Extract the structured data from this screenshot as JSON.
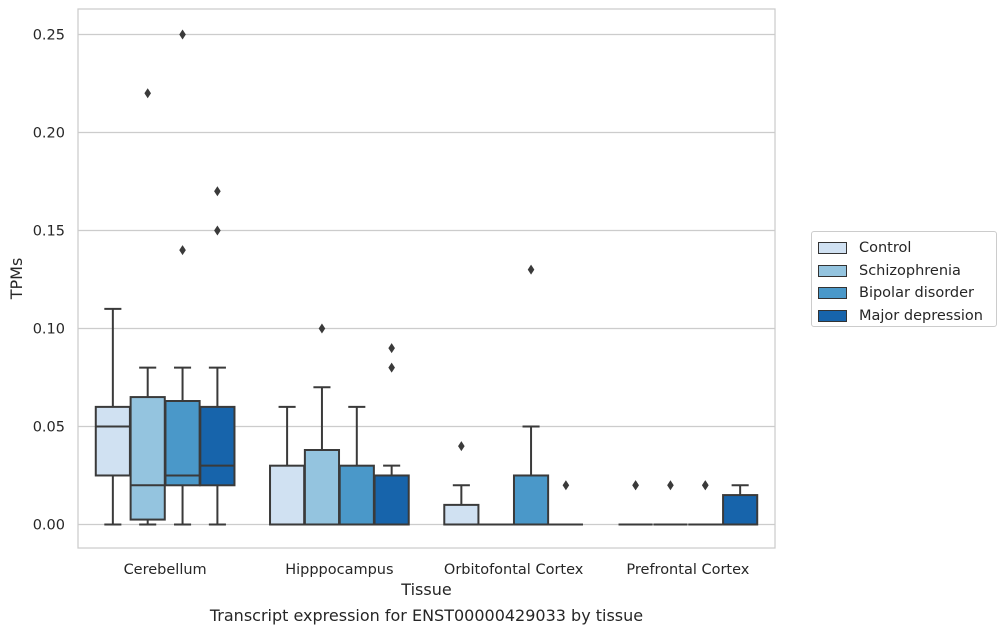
{
  "chart_data": {
    "type": "box",
    "title": "",
    "xlabel": "Tissue",
    "ylabel": "TPMs",
    "caption": "Transcript expression for ENST00000429033 by tissue",
    "ylim": [
      -0.012,
      0.263
    ],
    "yticks": [
      0.0,
      0.05,
      0.1,
      0.15,
      0.2,
      0.25
    ],
    "ytick_labels": [
      "0.00",
      "0.05",
      "0.10",
      "0.15",
      "0.20",
      "0.25"
    ],
    "grid": true,
    "legend_position": "right",
    "categories": [
      "Cerebellum",
      "Hipppocampus",
      "Orbitofontal Cortex",
      "Prefrontal Cortex"
    ],
    "series": [
      {
        "name": "Control",
        "color": "#d0e1f2",
        "boxes": [
          {
            "whisker_low": 0.0,
            "q1": 0.025,
            "median": 0.05,
            "q3": 0.06,
            "whisker_high": 0.11,
            "outliers": []
          },
          {
            "whisker_low": 0.0,
            "q1": 0.0,
            "median": 0.0,
            "q3": 0.03,
            "whisker_high": 0.06,
            "outliers": []
          },
          {
            "whisker_low": 0.0,
            "q1": 0.0,
            "median": 0.0,
            "q3": 0.01,
            "whisker_high": 0.02,
            "outliers": [
              0.04
            ]
          },
          {
            "whisker_low": 0.0,
            "q1": 0.0,
            "median": 0.0,
            "q3": 0.0,
            "whisker_high": 0.0,
            "outliers": [
              0.02,
              0.02
            ]
          }
        ]
      },
      {
        "name": "Schizophrenia",
        "color": "#94c4df",
        "boxes": [
          {
            "whisker_low": 0.0,
            "q1": 0.0025,
            "median": 0.02,
            "q3": 0.065,
            "whisker_high": 0.08,
            "outliers": [
              0.22
            ]
          },
          {
            "whisker_low": 0.0,
            "q1": 0.0,
            "median": 0.0,
            "q3": 0.038,
            "whisker_high": 0.07,
            "outliers": [
              0.1
            ]
          },
          {
            "whisker_low": 0.0,
            "q1": 0.0,
            "median": 0.0,
            "q3": 0.0,
            "whisker_high": 0.0,
            "outliers": []
          },
          {
            "whisker_low": 0.0,
            "q1": 0.0,
            "median": 0.0,
            "q3": 0.0,
            "whisker_high": 0.0,
            "outliers": [
              0.02
            ]
          }
        ]
      },
      {
        "name": "Bipolar disorder",
        "color": "#4a98c9",
        "boxes": [
          {
            "whisker_low": 0.0,
            "q1": 0.02,
            "median": 0.025,
            "q3": 0.063,
            "whisker_high": 0.08,
            "outliers": [
              0.14,
              0.25
            ]
          },
          {
            "whisker_low": 0.0,
            "q1": 0.0,
            "median": 0.0,
            "q3": 0.03,
            "whisker_high": 0.06,
            "outliers": []
          },
          {
            "whisker_low": 0.0,
            "q1": 0.0,
            "median": 0.0,
            "q3": 0.025,
            "whisker_high": 0.05,
            "outliers": [
              0.13
            ]
          },
          {
            "whisker_low": 0.0,
            "q1": 0.0,
            "median": 0.0,
            "q3": 0.0,
            "whisker_high": 0.0,
            "outliers": [
              0.02,
              0.02
            ]
          }
        ]
      },
      {
        "name": "Major depression",
        "color": "#1764ab",
        "boxes": [
          {
            "whisker_low": 0.0,
            "q1": 0.02,
            "median": 0.03,
            "q3": 0.06,
            "whisker_high": 0.08,
            "outliers": [
              0.15,
              0.17
            ]
          },
          {
            "whisker_low": 0.0,
            "q1": 0.0,
            "median": 0.0,
            "q3": 0.025,
            "whisker_high": 0.03,
            "outliers": [
              0.08,
              0.09
            ]
          },
          {
            "whisker_low": 0.0,
            "q1": 0.0,
            "median": 0.0,
            "q3": 0.0,
            "whisker_high": 0.0,
            "outliers": [
              0.02
            ]
          },
          {
            "whisker_low": 0.0,
            "q1": 0.0,
            "median": 0.0,
            "q3": 0.015,
            "whisker_high": 0.02,
            "outliers": []
          }
        ]
      }
    ]
  }
}
